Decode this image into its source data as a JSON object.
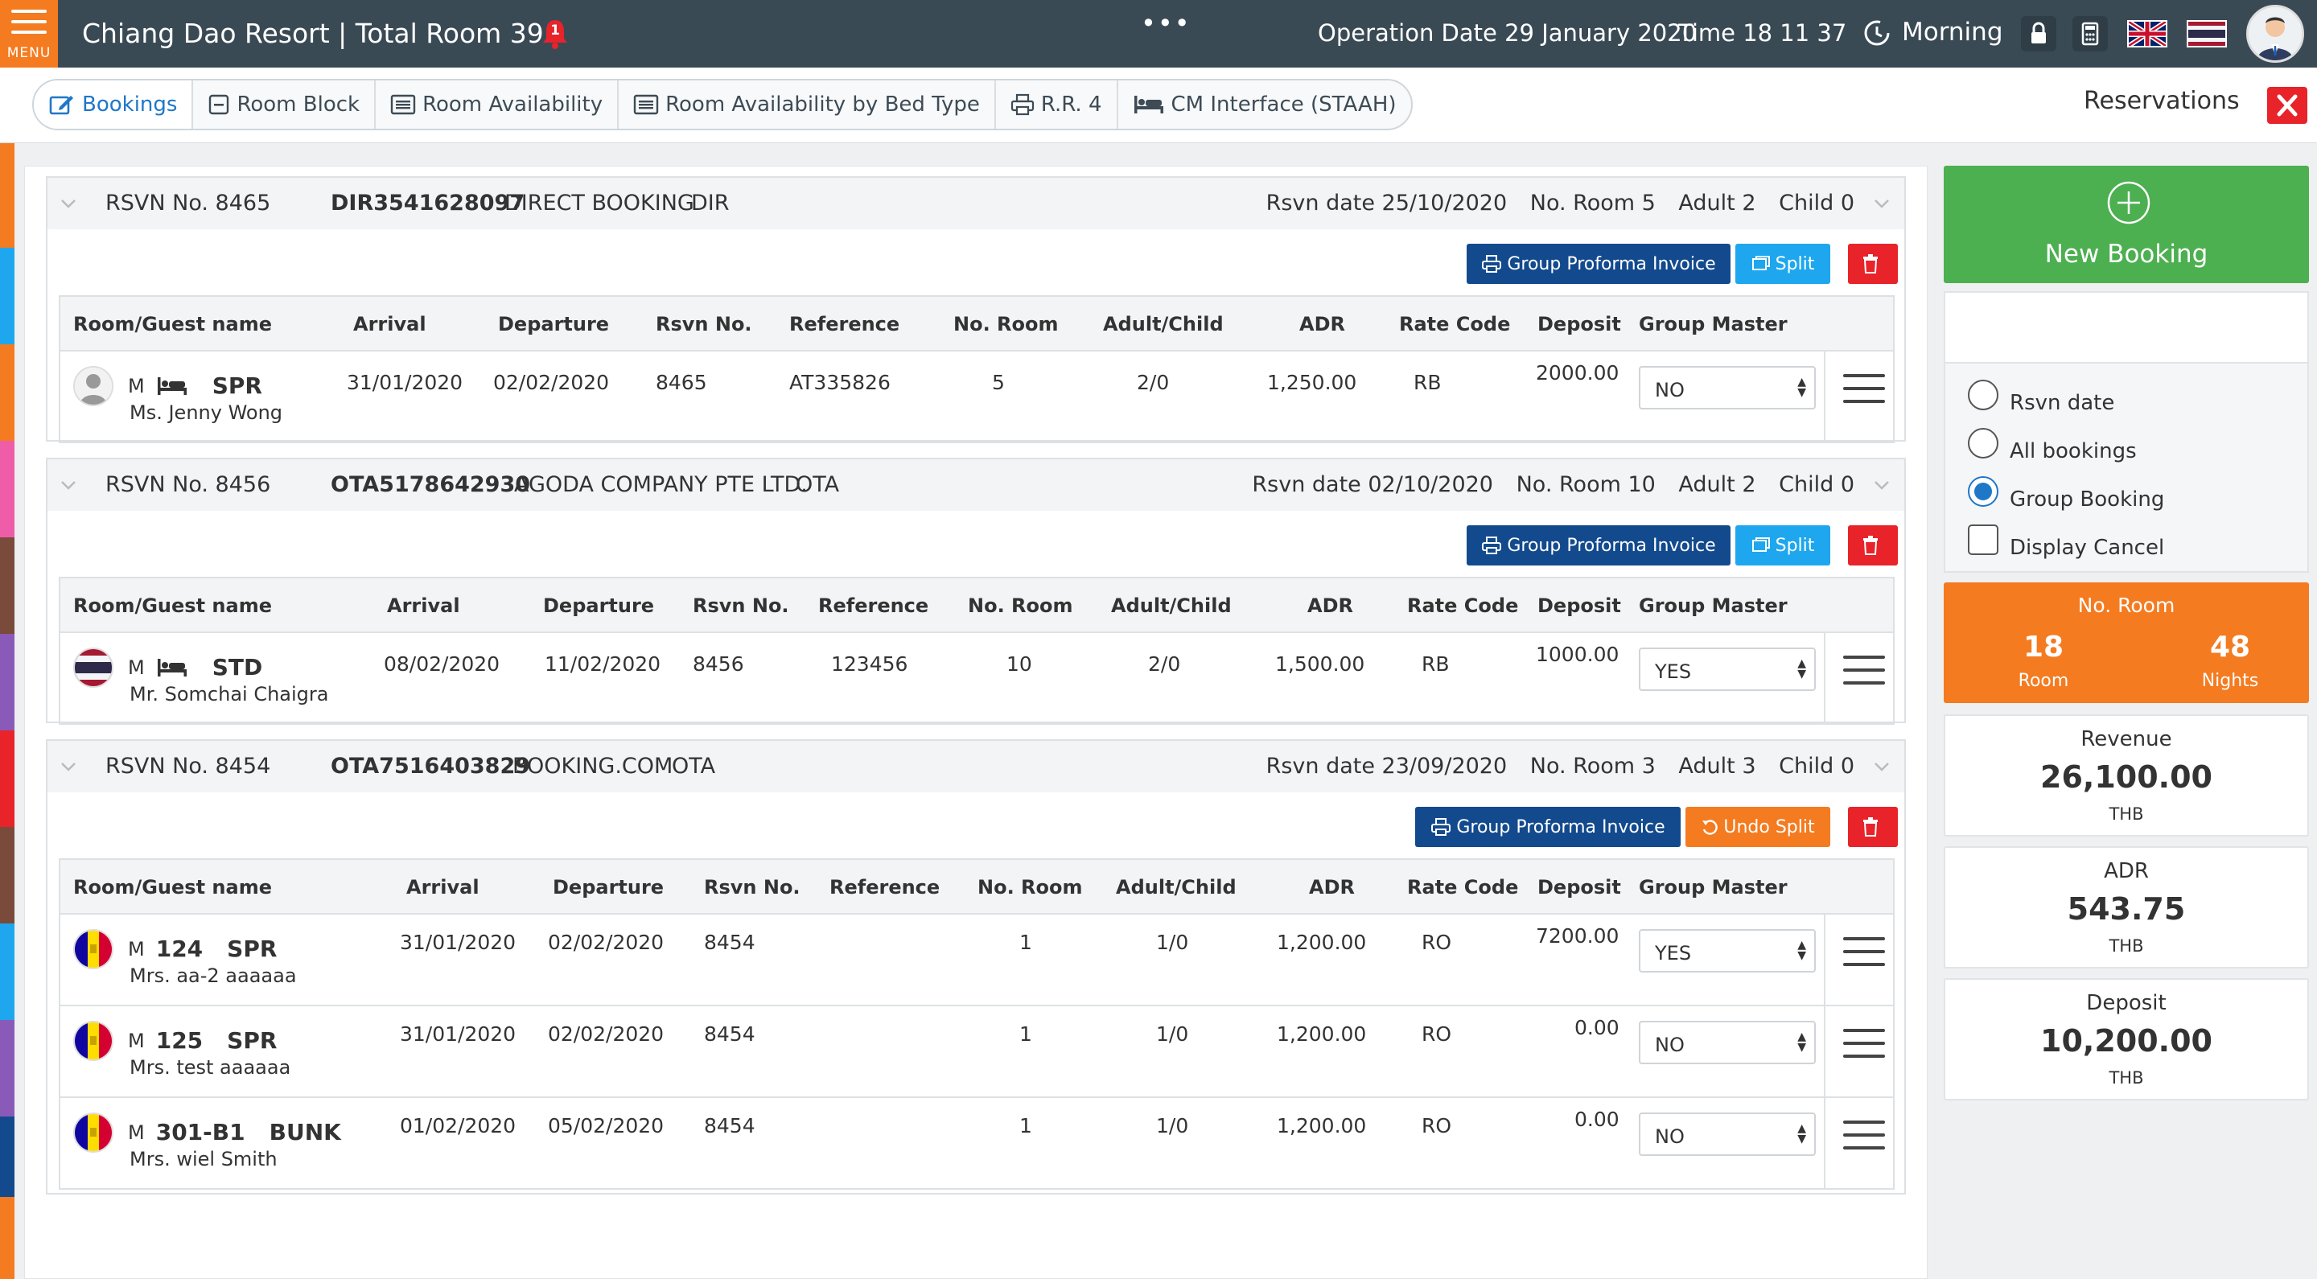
{
  "topbar": {
    "menu_label": "MENU",
    "title": "Chiang Dao Resort | Total Room 39",
    "alert_count": "1",
    "operation_date": "Operation Date 29 January 2020",
    "time": "Time 18  11  37",
    "shift": "Morning",
    "icons": [
      "menu-icon",
      "bell-icon",
      "more-icon",
      "clock-icon",
      "lock-icon",
      "calculator-icon",
      "flag-uk-icon",
      "flag-th-icon",
      "user-avatar"
    ]
  },
  "tabs": [
    {
      "label": "Bookings",
      "icon": "edit-icon",
      "active": true
    },
    {
      "label": "Room Block",
      "icon": "square-minus-icon"
    },
    {
      "label": "Room Availability",
      "icon": "list-icon"
    },
    {
      "label": "Room Availability by Bed Type",
      "icon": "list-icon"
    },
    {
      "label": "R.R. 4",
      "icon": "printer-icon"
    },
    {
      "label": "CM Interface (STAAH)",
      "icon": "bed-icon"
    }
  ],
  "page_title": "Reservations",
  "buttons": {
    "group_proforma": "Group Proforma Invoice",
    "split": "Split",
    "undo_split": "Undo Split"
  },
  "columns": [
    "Room/Guest name",
    "Arrival",
    "Departure",
    "Rsvn No.",
    "Reference",
    "No. Room",
    "Adult/Child",
    "ADR",
    "Rate Code",
    "Deposit",
    "Group Master"
  ],
  "reservations": [
    {
      "rsvn_label": "RSVN No. 8465",
      "code": "DIR3541628097",
      "source": "DIRECT BOOKING",
      "channel": "DIR",
      "rsvn_date": "Rsvn date 25/10/2020",
      "no_room": "No. Room 5",
      "adult": "Adult 2",
      "child": "Child 0",
      "rows": [
        {
          "gender": "M",
          "room_no": "",
          "room_type": "SPR",
          "guest": "Ms. Jenny Wong",
          "arrival": "31/01/2020",
          "departure": "02/02/2020",
          "rsvn_no": "8465",
          "reference": "AT335826",
          "no_room": "5",
          "adult_child": "2/0",
          "adr": "1,250.00",
          "rate_code": "RB",
          "deposit": "2000.00",
          "group_master": "NO",
          "icon": "person-icon"
        }
      ]
    },
    {
      "rsvn_label": "RSVN No. 8456",
      "code": "OTA5178642930",
      "source": "AGODA COMPANY PTE LTD.",
      "channel": "OTA",
      "rsvn_date": "Rsvn date 02/10/2020",
      "no_room": "No. Room 10",
      "adult": "Adult 2",
      "child": "Child 0",
      "rows": [
        {
          "gender": "M",
          "room_no": "",
          "room_type": "STD",
          "guest": "Mr. Somchai Chaigra",
          "arrival": "08/02/2020",
          "departure": "11/02/2020",
          "rsvn_no": "8456",
          "reference": "123456",
          "no_room": "10",
          "adult_child": "2/0",
          "adr": "1,500.00",
          "rate_code": "RB",
          "deposit": "1000.00",
          "group_master": "YES",
          "icon": "flag-th-icon"
        }
      ]
    },
    {
      "rsvn_label": "RSVN No. 8454",
      "code": "OTA7516403829",
      "source": "BOOKING.COM",
      "channel": "OTA",
      "rsvn_date": "Rsvn date 23/09/2020",
      "no_room": "No. Room 3",
      "adult": "Adult 3",
      "child": "Child 0",
      "rows": [
        {
          "gender": "M",
          "room_no": "124",
          "room_type": "SPR",
          "guest": "Mrs. aa-2 aaaaaa",
          "arrival": "31/01/2020",
          "departure": "02/02/2020",
          "rsvn_no": "8454",
          "reference": "",
          "no_room": "1",
          "adult_child": "1/0",
          "adr": "1,200.00",
          "rate_code": "RO",
          "deposit": "7200.00",
          "group_master": "YES",
          "icon": "flag-ad-icon"
        },
        {
          "gender": "M",
          "room_no": "125",
          "room_type": "SPR",
          "guest": "Mrs. test aaaaaa",
          "arrival": "31/01/2020",
          "departure": "02/02/2020",
          "rsvn_no": "8454",
          "reference": "",
          "no_room": "1",
          "adult_child": "1/0",
          "adr": "1,200.00",
          "rate_code": "RO",
          "deposit": "0.00",
          "group_master": "NO",
          "icon": "flag-ad-icon"
        },
        {
          "gender": "M",
          "room_no": "301-B1",
          "room_type": "BUNK",
          "guest": "Mrs. wiel Smith",
          "arrival": "01/02/2020",
          "departure": "05/02/2020",
          "rsvn_no": "8454",
          "reference": "",
          "no_room": "1",
          "adult_child": "1/0",
          "adr": "1,200.00",
          "rate_code": "RO",
          "deposit": "0.00",
          "group_master": "NO",
          "icon": "flag-ad-icon"
        }
      ]
    }
  ],
  "sidebar": {
    "new_booking": "New Booking",
    "filters": [
      {
        "label": "Rsvn date",
        "type": "radio",
        "checked": false
      },
      {
        "label": "All bookings",
        "type": "radio",
        "checked": false
      },
      {
        "label": "Group Booking",
        "type": "radio",
        "checked": true
      },
      {
        "label": "Display Cancel",
        "type": "checkbox",
        "checked": false
      }
    ],
    "no_room": {
      "title": "No. Room",
      "room_value": "18",
      "room_label": "Room",
      "nights_value": "48",
      "nights_label": "Nights"
    },
    "revenue": {
      "title": "Revenue",
      "value": "26,100.00",
      "unit": "THB"
    },
    "adr": {
      "title": "ADR",
      "value": "543.75",
      "unit": "THB"
    },
    "deposit": {
      "title": "Deposit",
      "value": "10,200.00",
      "unit": "THB"
    }
  },
  "colors": {
    "topbar": "#3a4a55",
    "accent_orange": "#f47b20",
    "accent_green": "#4caf50",
    "button_navy": "#134a8e",
    "button_sky": "#1ea7ee",
    "danger": "#e8232a",
    "link_blue": "#1f77c8"
  }
}
